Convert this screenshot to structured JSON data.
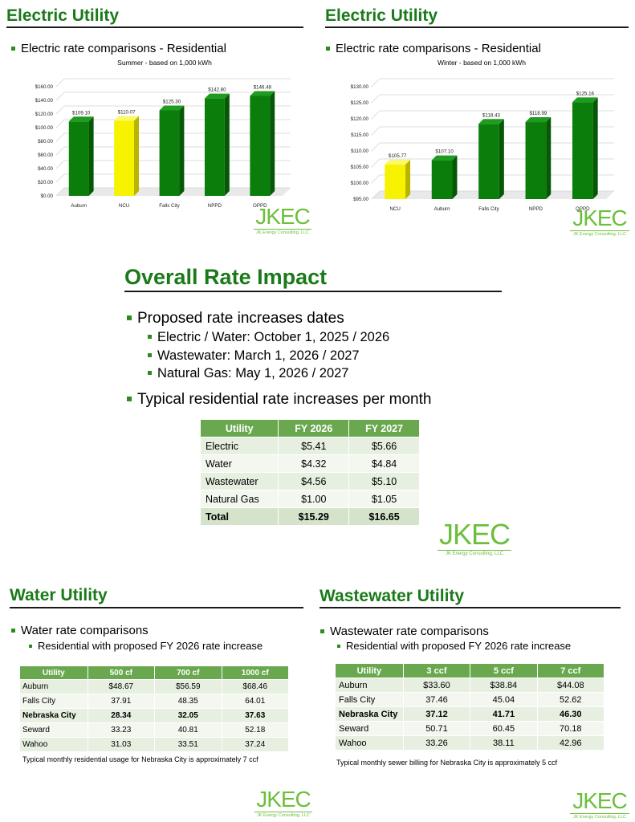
{
  "electric_summer": {
    "heading": "Electric Utility",
    "bullet": "Electric rate comparisons - Residential",
    "chart_title": "Summer - based on 1,000 kWh"
  },
  "electric_winter": {
    "heading": "Electric Utility",
    "bullet": "Electric rate comparisons - Residential",
    "chart_title": "Winter - based on 1,000 kWh"
  },
  "overall": {
    "heading": "Overall Rate Impact",
    "bullet1": "Proposed rate increases dates",
    "sub1": "Electric / Water:  October 1, 2025 / 2026",
    "sub2": "Wastewater:  March 1, 2026 / 2027",
    "sub3": "Natural Gas:  May 1, 2026 / 2027",
    "bullet2": "Typical residential rate increases per month",
    "table": {
      "headers": [
        "Utility",
        "FY 2026",
        "FY 2027"
      ],
      "rows": [
        [
          "Electric",
          "$5.41",
          "$5.66"
        ],
        [
          "Water",
          "$4.32",
          "$4.84"
        ],
        [
          "Wastewater",
          "$4.56",
          "$5.10"
        ],
        [
          "Natural Gas",
          "$1.00",
          "$1.05"
        ],
        [
          "Total",
          "$15.29",
          "$16.65"
        ]
      ]
    }
  },
  "water": {
    "heading": "Water Utility",
    "bullet": "Water rate comparisons",
    "sub": "Residential with proposed FY 2026 rate increase",
    "table": {
      "headers": [
        "Utility",
        "500 cf",
        "700 cf",
        "1000 cf"
      ],
      "rows": [
        [
          "Auburn",
          "$48.67",
          "$56.59",
          "$68.46"
        ],
        [
          "Falls City",
          "37.91",
          "48.35",
          "64.01"
        ],
        [
          "Nebraska City",
          "28.34",
          "32.05",
          "37.63"
        ],
        [
          "Seward",
          "33.23",
          "40.81",
          "52.18"
        ],
        [
          "Wahoo",
          "31.03",
          "33.51",
          "37.24"
        ]
      ]
    },
    "note": "Typical monthly residential usage for Nebraska City is approximately 7 ccf"
  },
  "wastewater": {
    "heading": "Wastewater Utility",
    "bullet": "Wastewater rate comparisons",
    "sub": "Residential with proposed FY 2026 rate increase",
    "table": {
      "headers": [
        "Utility",
        "3 ccf",
        "5 ccf",
        "7 ccf"
      ],
      "rows": [
        [
          "Auburn",
          "$33.60",
          "$38.84",
          "$44.08"
        ],
        [
          "Falls City",
          "37.46",
          "45.04",
          "52.62"
        ],
        [
          "Nebraska City",
          "37.12",
          "41.71",
          "46.30"
        ],
        [
          "Seward",
          "50.71",
          "60.45",
          "70.18"
        ],
        [
          "Wahoo",
          "33.26",
          "38.11",
          "42.96"
        ]
      ]
    },
    "note": "Typical monthly sewer billing for Nebraska City is approximately 5 ccf"
  },
  "logo": {
    "mark": "JKEC",
    "sub": "JK Energy Consulting, LLC"
  },
  "colors": {
    "green_bar": "#0a7a0a",
    "yellow_bar": "#ffff1a",
    "heading": "#1a7a1a",
    "table_header": "#6aa84f",
    "row_light": "#e6efe0",
    "row_dark": "#d4e3ca"
  },
  "chart_data": [
    {
      "type": "bar",
      "title": "Summer - based on 1,000 kWh",
      "categories": [
        "Auburn",
        "NCU",
        "Falls City",
        "NPPD",
        "OPPD"
      ],
      "values": [
        109.1,
        110.07,
        125.3,
        142.8,
        146.48
      ],
      "value_labels": [
        "$109.10",
        "$110.07",
        "$125.30",
        "$142.80",
        "$146.48"
      ],
      "highlight": "NCU",
      "ylim": [
        0,
        160
      ],
      "yticks": [
        0,
        20,
        40,
        60,
        80,
        100,
        120,
        140,
        160
      ],
      "ytick_labels": [
        "$0.00",
        "$20.00",
        "$40.00",
        "$60.00",
        "$80.00",
        "$100.00",
        "$120.00",
        "$140.00",
        "$160.00"
      ],
      "grid": true
    },
    {
      "type": "bar",
      "title": "Winter - based on 1,000 kWh",
      "categories": [
        "NCU",
        "Auburn",
        "Falls City",
        "NPPD",
        "OPPD"
      ],
      "values": [
        105.77,
        107.1,
        118.43,
        118.99,
        125.16
      ],
      "value_labels": [
        "$105.77",
        "$107.10",
        "$118.43",
        "$118.99",
        "$125.16"
      ],
      "highlight": "NCU",
      "ylim": [
        95,
        130
      ],
      "yticks": [
        95,
        100,
        105,
        110,
        115,
        120,
        125,
        130
      ],
      "ytick_labels": [
        "$95.00",
        "$100.00",
        "$105.00",
        "$110.00",
        "$115.00",
        "$120.00",
        "$125.00",
        "$130.00"
      ],
      "grid": true
    }
  ]
}
